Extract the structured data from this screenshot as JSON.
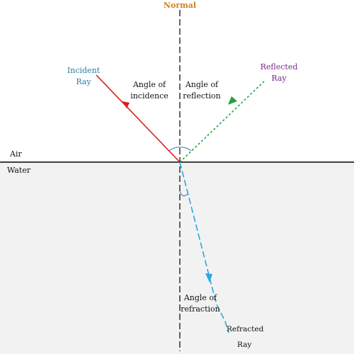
{
  "labels": {
    "normal": "Normal",
    "incident_line1": "Incident",
    "incident_line2": "Ray",
    "angle_incidence_line1": "Angle of",
    "angle_incidence_line2": "incidence",
    "angle_reflection_line1": "Angle of",
    "angle_reflection_line2": "reflection",
    "reflected_line1": "Reflected",
    "reflected_line2": "Ray",
    "medium_top": "Air",
    "medium_bottom": "Water",
    "angle_refraction_line1": "Angle of",
    "angle_refraction_line2": "refraction",
    "refracted_line1": "Refracted",
    "refracted_line2": "Ray"
  },
  "colors": {
    "normal_label": "#d08020",
    "incident_ray": "#d42020",
    "incident_label": "#2a7fa0",
    "reflected_ray": "#22a040",
    "reflected_label": "#7a2a8a",
    "refracted_ray": "#2aa8e0",
    "water_fill": "#f2f2f2",
    "angle_arc": "#4a6fa5",
    "text": "#111111"
  }
}
